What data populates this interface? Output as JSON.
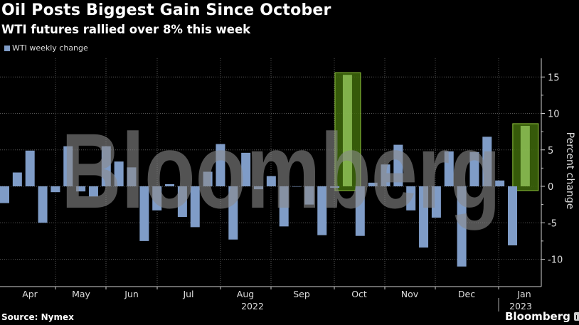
{
  "header": {
    "title": "Oil Posts Biggest Gain Since October",
    "subtitle": "WTI futures rallied over 8% this week"
  },
  "legend": {
    "label": "WTI weekly change",
    "color": "#7f9cc7"
  },
  "footer": {
    "source": "Source: Nymex",
    "brand": "Bloomberg"
  },
  "watermark": "Bloomberg",
  "colors": {
    "bar": "#7f9cc7",
    "highlight_fill": "#3f6a0c",
    "highlight_border": "#8fc43a",
    "grid": "#555555",
    "axis": "#cfcfcf",
    "watermark": "#8a8a8a"
  },
  "chart_data": {
    "type": "bar",
    "title": "Oil Posts Biggest Gain Since October",
    "subtitle": "WTI futures rallied over 8% this week",
    "xlabel": "",
    "ylabel": "Percent change",
    "ylim": [
      -12,
      17.5
    ],
    "yticks": [
      15,
      10,
      5,
      0,
      -5,
      -10
    ],
    "legend": [
      "WTI weekly change"
    ],
    "legend_position": "top-left",
    "grid": true,
    "x_month_labels": [
      "Apr",
      "May",
      "Jun",
      "Jul",
      "Aug",
      "Sep",
      "Oct",
      "Nov",
      "Dec",
      "Jan"
    ],
    "x_year_labels": [
      {
        "label": "2022",
        "under": "Aug"
      },
      {
        "label": "2023",
        "under": "Jan"
      }
    ],
    "series": [
      {
        "name": "WTI weekly change",
        "values": [
          -2.3,
          1.9,
          4.9,
          -5.0,
          -0.8,
          5.5,
          -0.7,
          -1.4,
          5.5,
          3.4,
          2.6,
          -7.5,
          -3.3,
          0.3,
          -4.2,
          -5.6,
          2.0,
          5.8,
          -7.3,
          4.6,
          -0.4,
          1.4,
          -5.5,
          0.0,
          -2.5,
          -6.7,
          -0.2,
          15.3,
          -6.8,
          0.5,
          3.0,
          5.7,
          -3.3,
          -8.4,
          -4.3,
          4.8,
          -11.0,
          4.7,
          6.8,
          0.8,
          -8.1,
          8.3
        ]
      }
    ],
    "highlighted_indices": [
      27,
      41
    ],
    "annotations": [
      "Highlighted week of ~+15.3% (early Oct 2022)",
      "Highlighted latest week ~+8.3% (Jan 2023)"
    ]
  }
}
